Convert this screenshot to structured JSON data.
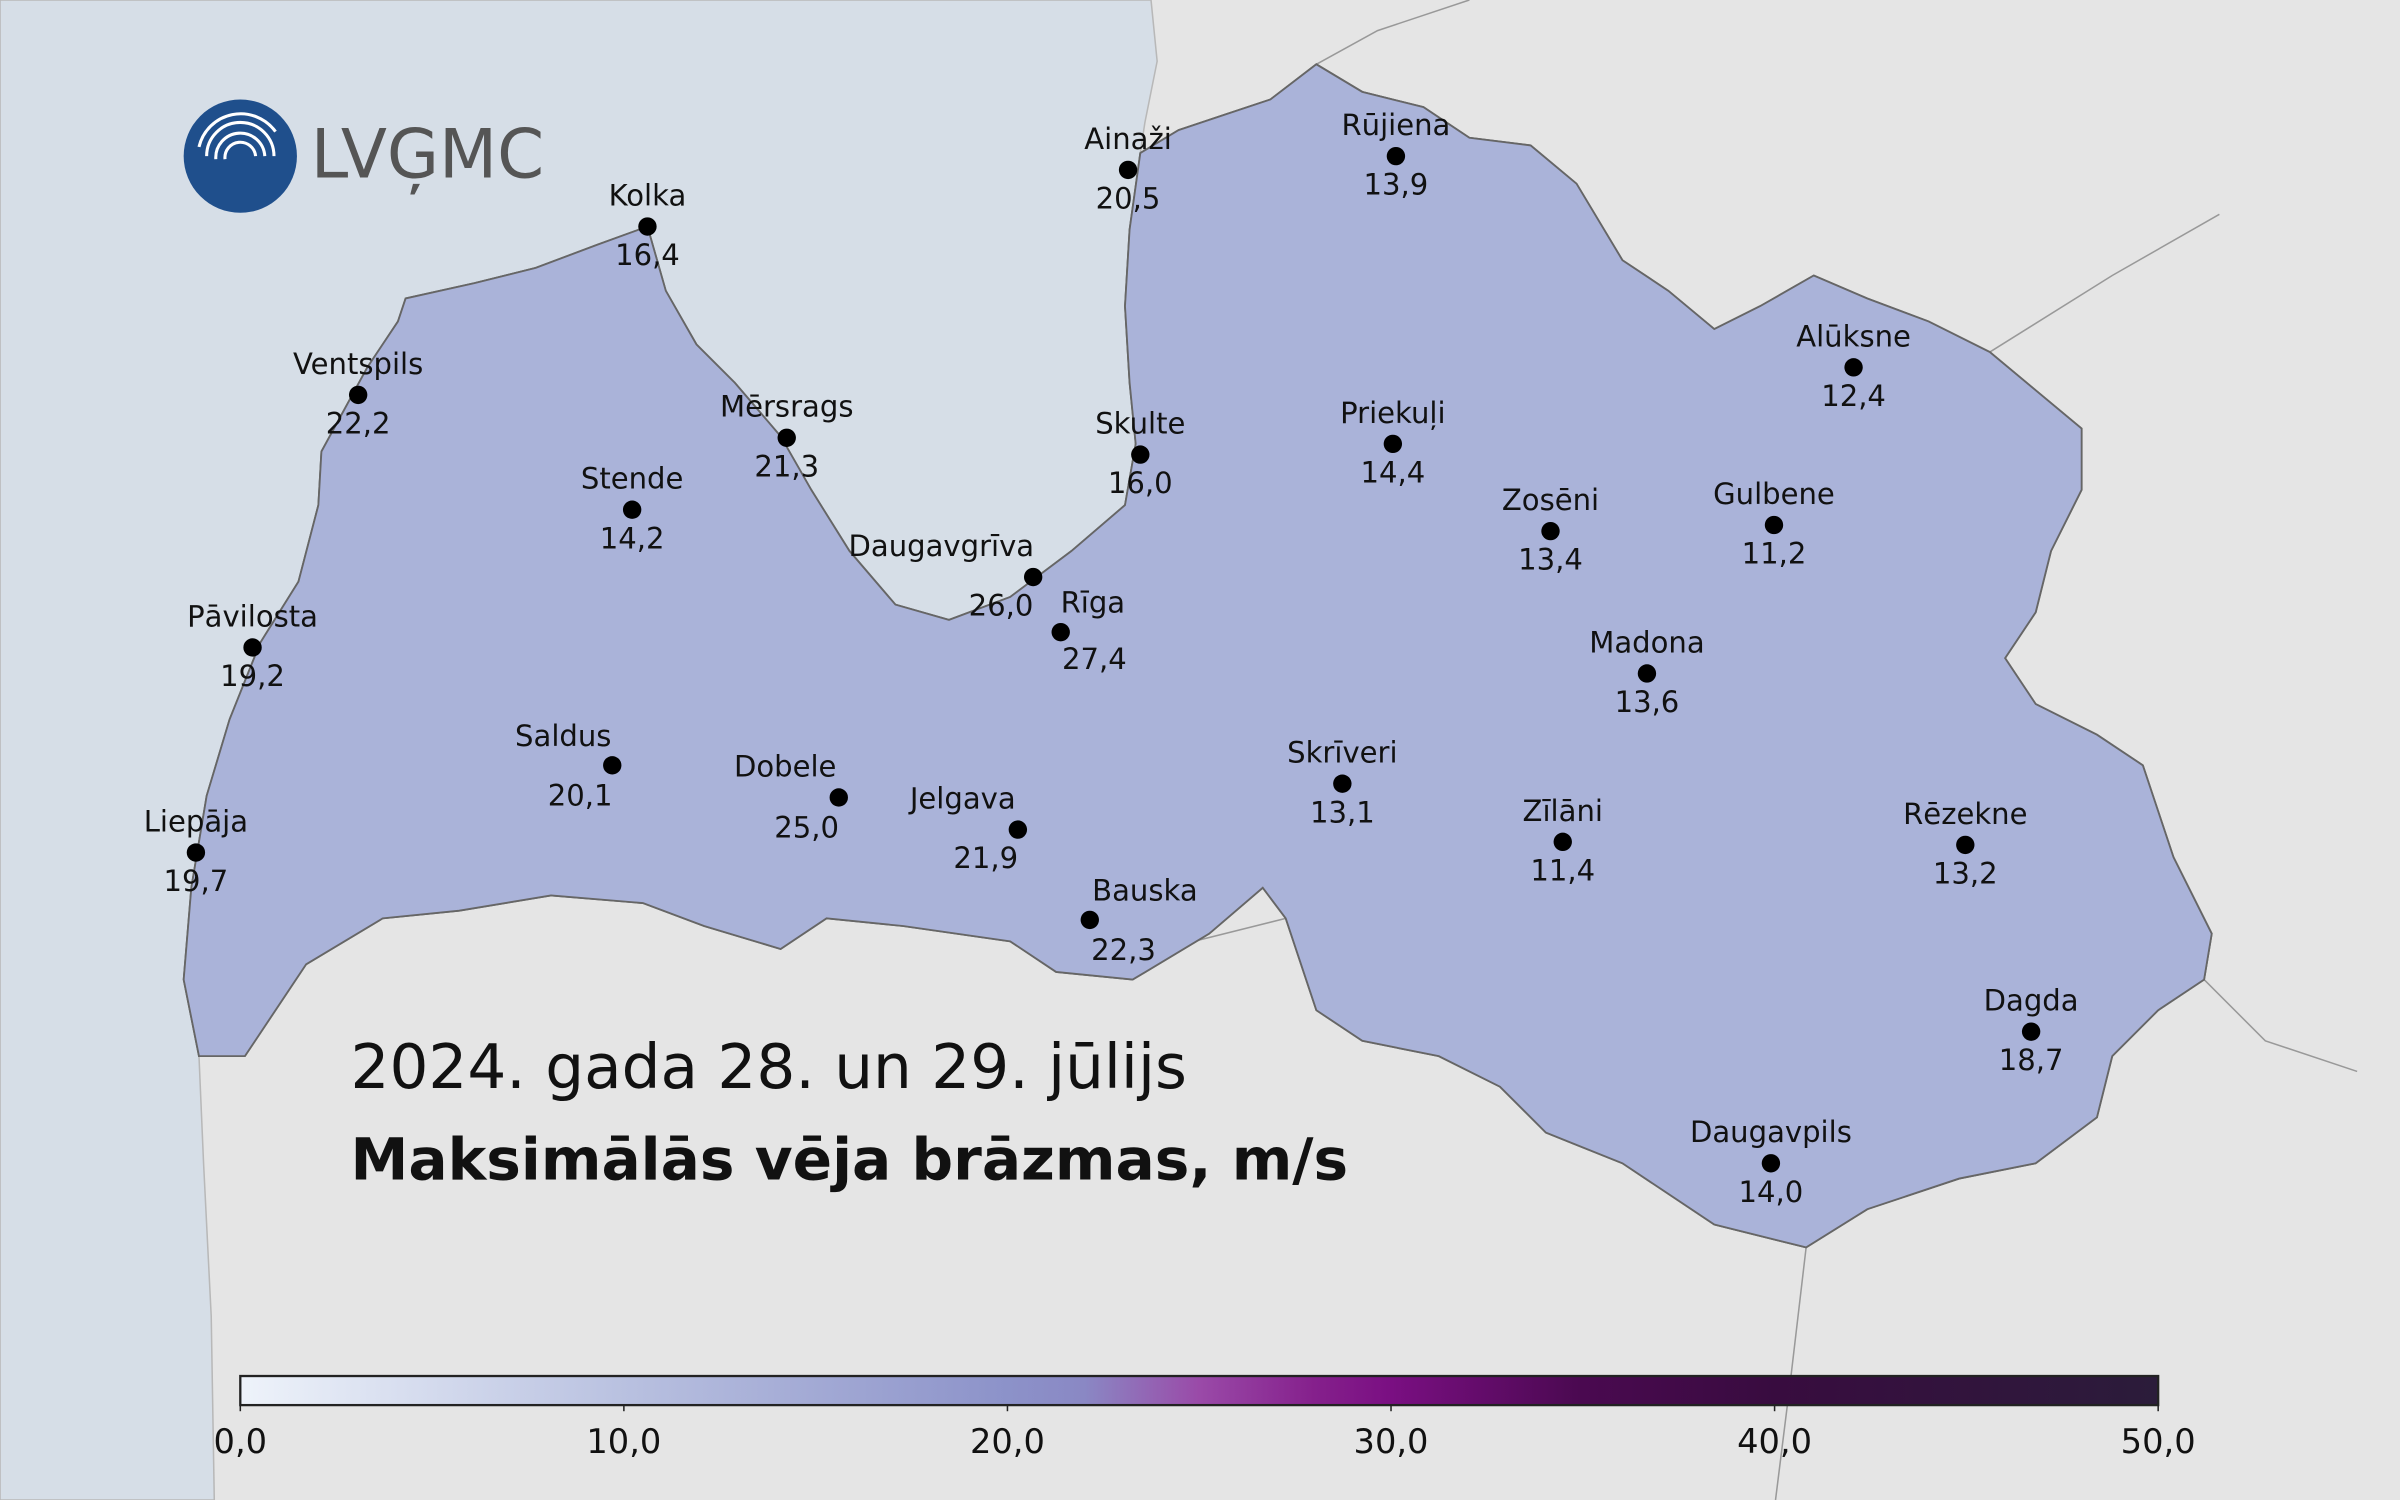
{
  "logo": "LVĢMC",
  "title": "2024. gada 28. un 29. jūlijs",
  "subtitle": "Maksimālās vēja brāzmas, m/s",
  "stations": [
    {
      "name": "Ainaži",
      "value": 20.5,
      "value_label": "20,5"
    },
    {
      "name": "Rūjiena",
      "value": 13.9,
      "value_label": "13,9"
    },
    {
      "name": "Kolka",
      "value": 16.4,
      "value_label": "16,4"
    },
    {
      "name": "Ventspils",
      "value": 22.2,
      "value_label": "22,2"
    },
    {
      "name": "Mērsrags",
      "value": 21.3,
      "value_label": "21,3"
    },
    {
      "name": "Skulte",
      "value": 16.0,
      "value_label": "16,0"
    },
    {
      "name": "Priekuļi",
      "value": 14.4,
      "value_label": "14,4"
    },
    {
      "name": "Alūksne",
      "value": 12.4,
      "value_label": "12,4"
    },
    {
      "name": "Stende",
      "value": 14.2,
      "value_label": "14,2"
    },
    {
      "name": "Zosēni",
      "value": 13.4,
      "value_label": "13,4"
    },
    {
      "name": "Gulbene",
      "value": 11.2,
      "value_label": "11,2"
    },
    {
      "name": "Daugavgrīva",
      "value": 26.0,
      "value_label": "26,0"
    },
    {
      "name": "Rīga",
      "value": 27.4,
      "value_label": "27,4"
    },
    {
      "name": "Pāvilosta",
      "value": 19.2,
      "value_label": "19,2"
    },
    {
      "name": "Madona",
      "value": 13.6,
      "value_label": "13,6"
    },
    {
      "name": "Saldus",
      "value": 20.1,
      "value_label": "20,1"
    },
    {
      "name": "Dobele",
      "value": 25.0,
      "value_label": "25,0"
    },
    {
      "name": "Skrīveri",
      "value": 13.1,
      "value_label": "13,1"
    },
    {
      "name": "Jelgava",
      "value": 21.9,
      "value_label": "21,9"
    },
    {
      "name": "Zīlāni",
      "value": 11.4,
      "value_label": "11,4"
    },
    {
      "name": "Rēzekne",
      "value": 13.2,
      "value_label": "13,2"
    },
    {
      "name": "Liepāja",
      "value": 19.7,
      "value_label": "19,7"
    },
    {
      "name": "Bauska",
      "value": 22.3,
      "value_label": "22,3"
    },
    {
      "name": "Dagda",
      "value": 18.7,
      "value_label": "18,7"
    },
    {
      "name": "Daugavpils",
      "value": 14.0,
      "value_label": "14,0"
    }
  ],
  "colorbar": {
    "lim": [
      0,
      50
    ],
    "ticks": [
      {
        "value": 0,
        "label": "0,0"
      },
      {
        "value": 10,
        "label": "10,0"
      },
      {
        "value": 20,
        "label": "20,0"
      },
      {
        "value": 30,
        "label": "30,0"
      },
      {
        "value": 40,
        "label": "40,0"
      },
      {
        "value": 50,
        "label": "50,0"
      }
    ],
    "colorscale": [
      [
        0,
        "#eef3fa"
      ],
      [
        10,
        "#b9c1e0"
      ],
      [
        20,
        "#8c92c9"
      ],
      [
        22,
        "#8a88c4"
      ],
      [
        25,
        "#9a4aa8"
      ],
      [
        28,
        "#85208c"
      ],
      [
        30,
        "#7a0f82"
      ],
      [
        35,
        "#4a0950"
      ],
      [
        40,
        "#380c3f"
      ],
      [
        50,
        "#2b1c3a"
      ]
    ]
  }
}
